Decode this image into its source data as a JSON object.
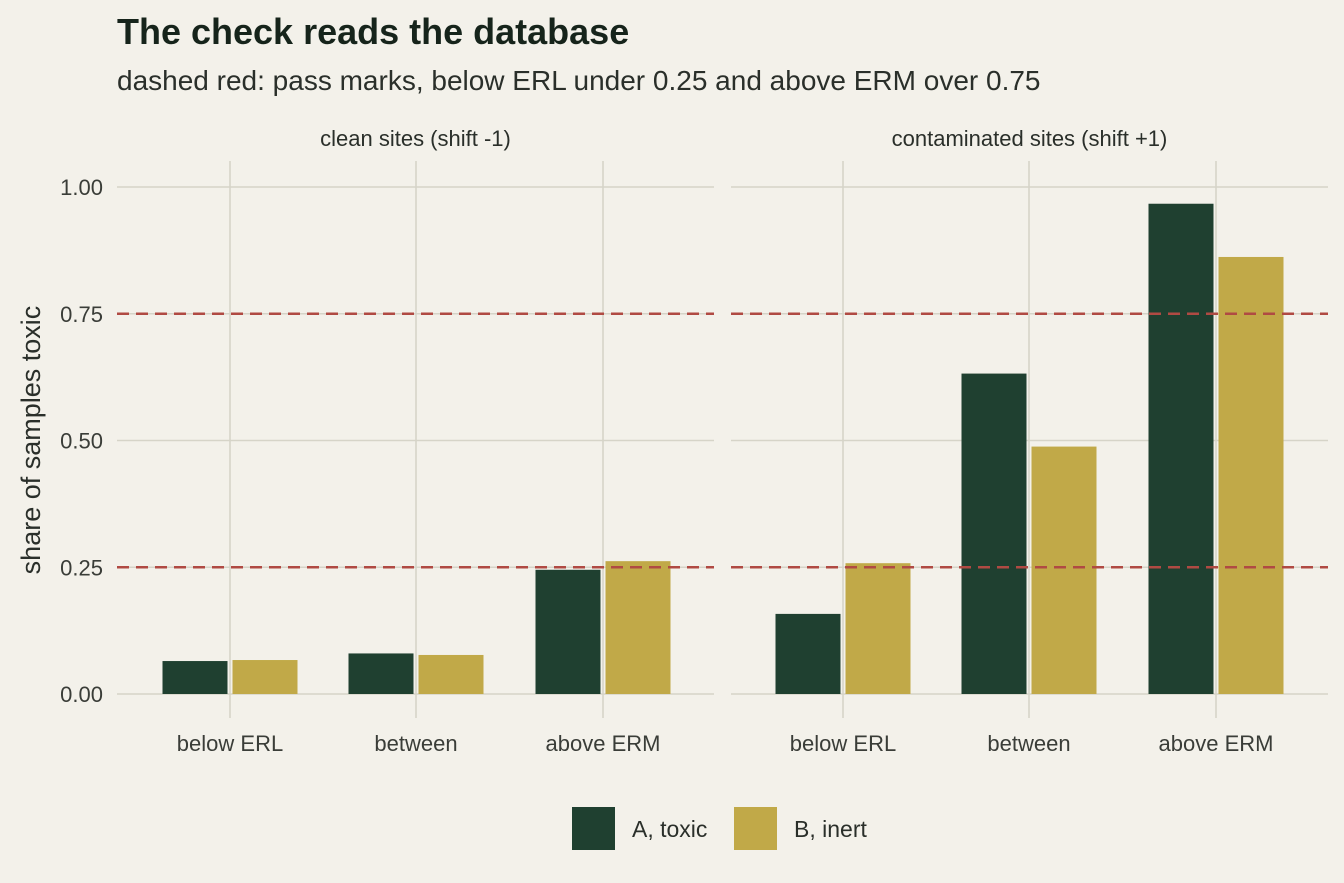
{
  "chart_data": {
    "type": "bar",
    "title": "The check reads the database",
    "subtitle": "dashed red: pass marks, below ERL under 0.25 and above ERM over 0.75",
    "xlabel": "",
    "ylabel": "share of samples toxic",
    "ylim": [
      0,
      1.05
    ],
    "yticks": [
      "0.00",
      "0.25",
      "0.50",
      "0.75",
      "1.00"
    ],
    "ytick_values": [
      0,
      0.25,
      0.5,
      0.75,
      1.0
    ],
    "categories": [
      "below ERL",
      "between",
      "above ERM"
    ],
    "reference_lines": [
      0.25,
      0.75
    ],
    "reference_color": "#b04a43",
    "grid": true,
    "legend_position": "bottom",
    "series": [
      {
        "name": "A, toxic",
        "color": "#1f4030"
      },
      {
        "name": "B, inert",
        "color": "#c1a948"
      }
    ],
    "panels": [
      {
        "label": "clean sites (shift -1)",
        "values": [
          [
            0.065,
            0.08,
            0.245
          ],
          [
            0.067,
            0.077,
            0.262
          ]
        ]
      },
      {
        "label": "contaminated sites (shift +1)",
        "values": [
          [
            0.158,
            0.632,
            0.967
          ],
          [
            0.258,
            0.488,
            0.862
          ]
        ]
      }
    ]
  }
}
